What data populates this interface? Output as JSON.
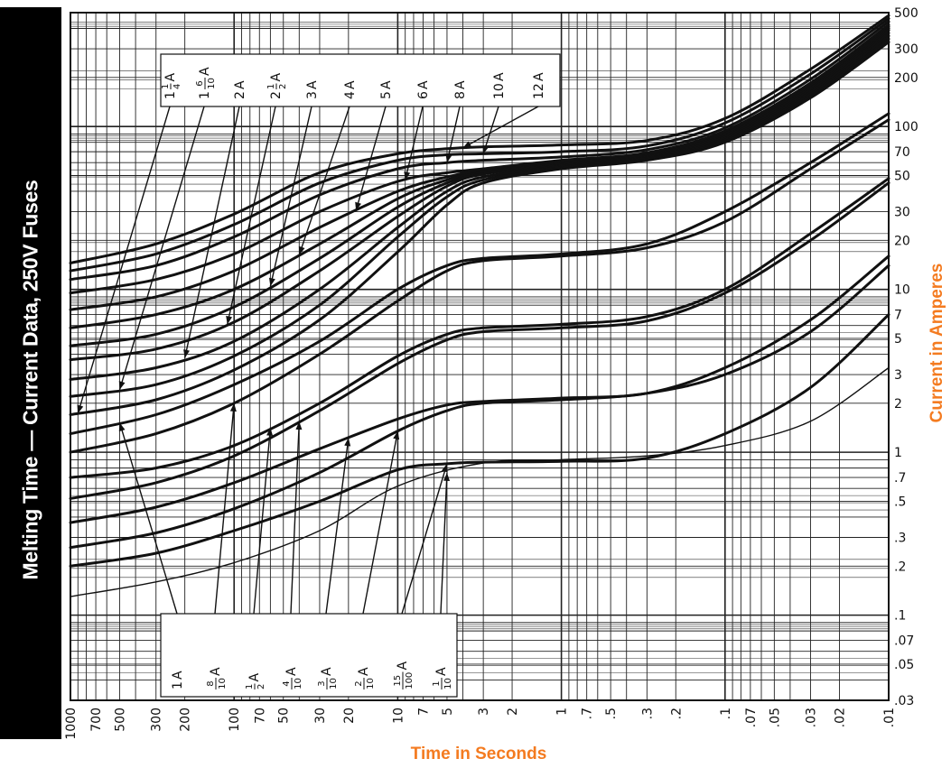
{
  "page": {
    "side_title": "Melting Time — Current Data, 250V Fuses",
    "accent_color": "#f47b20",
    "banner_color": "#000000"
  },
  "chart_data": {
    "type": "line",
    "title": "",
    "xlabel": "Time in Seconds",
    "ylabel": "Current in Amperes",
    "x_scale": "log",
    "y_scale": "log",
    "x_reversed": true,
    "xlim": [
      1000,
      0.01
    ],
    "ylim": [
      0.03,
      500
    ],
    "grid": true,
    "x_tick_labels": [
      "1000",
      "700",
      "500",
      "300",
      "200",
      "100",
      "70",
      "50",
      "30",
      "20",
      "10",
      "7",
      "5",
      "3",
      "2",
      "1",
      ".7",
      ".5",
      ".3",
      ".2",
      ".1",
      ".07",
      ".05",
      ".03",
      ".02",
      ".01"
    ],
    "x_tick_values": [
      1000,
      700,
      500,
      300,
      200,
      100,
      70,
      50,
      30,
      20,
      10,
      7,
      5,
      3,
      2,
      1,
      0.7,
      0.5,
      0.3,
      0.2,
      0.1,
      0.07,
      0.05,
      0.03,
      0.02,
      0.01
    ],
    "y_tick_labels": [
      "500",
      "300",
      "200",
      "100",
      "70",
      "50",
      "30",
      "20",
      "10",
      "7",
      "5",
      "3",
      "2",
      "1",
      ".7",
      ".5",
      ".3",
      ".2",
      ".1",
      ".07",
      ".05",
      ".03"
    ],
    "y_tick_values": [
      500,
      300,
      200,
      100,
      70,
      50,
      30,
      20,
      10,
      7,
      5,
      3,
      2,
      1,
      0.7,
      0.5,
      0.3,
      0.2,
      0.1,
      0.07,
      0.05,
      0.03
    ],
    "series": [
      {
        "name": "1/10 A",
        "thin": true,
        "x": [
          1000,
          300,
          100,
          30,
          10,
          3,
          1,
          0.3,
          0.1,
          0.03,
          0.01
        ],
        "y": [
          0.13,
          0.16,
          0.21,
          0.33,
          0.62,
          0.86,
          0.9,
          0.95,
          1.1,
          1.55,
          3.3
        ]
      },
      {
        "name": "15/100 A",
        "x": [
          1000,
          300,
          100,
          30,
          10,
          5,
          3,
          1,
          0.3,
          0.1,
          0.03,
          0.01
        ],
        "y": [
          0.2,
          0.24,
          0.33,
          0.5,
          0.78,
          0.85,
          0.87,
          0.88,
          0.92,
          1.3,
          2.5,
          7.0
        ]
      },
      {
        "name": "2/10 A",
        "x": [
          1000,
          300,
          100,
          30,
          10,
          5,
          3,
          1,
          0.3,
          0.1,
          0.03,
          0.01
        ],
        "y": [
          0.26,
          0.32,
          0.45,
          0.75,
          1.35,
          1.8,
          2.0,
          2.1,
          2.3,
          3.0,
          5.5,
          14.0
        ]
      },
      {
        "name": "3/10 A",
        "x": [
          1000,
          300,
          100,
          30,
          10,
          5,
          3,
          1,
          0.3,
          0.1,
          0.03,
          0.01
        ],
        "y": [
          0.37,
          0.46,
          0.65,
          1.05,
          1.6,
          1.95,
          2.05,
          2.15,
          2.3,
          3.3,
          6.5,
          16.0
        ]
      },
      {
        "name": "4/10 A",
        "x": [
          1000,
          300,
          100,
          30,
          10,
          5,
          3,
          1,
          0.3,
          0.1,
          0.03,
          0.01
        ],
        "y": [
          0.52,
          0.65,
          0.95,
          1.8,
          3.5,
          4.9,
          5.5,
          5.8,
          6.4,
          9.5,
          20.0,
          45.0
        ]
      },
      {
        "name": "1/2 A",
        "x": [
          1000,
          300,
          100,
          30,
          10,
          5,
          3,
          1,
          0.3,
          0.1,
          0.03,
          0.01
        ],
        "y": [
          0.7,
          0.8,
          1.1,
          2.0,
          3.9,
          5.3,
          5.8,
          6.1,
          6.8,
          10.0,
          22.0,
          48.0
        ]
      },
      {
        "name": "8/10 A",
        "x": [
          1000,
          300,
          100,
          30,
          10,
          5,
          3,
          1,
          0.3,
          0.1,
          0.03,
          0.01
        ],
        "y": [
          1.0,
          1.3,
          2.0,
          4.0,
          8.5,
          13.0,
          15.0,
          16.0,
          18.0,
          26.0,
          55.0,
          110.0
        ]
      },
      {
        "name": "1 A",
        "x": [
          1000,
          300,
          100,
          30,
          10,
          5,
          3,
          1,
          0.3,
          0.1,
          0.03,
          0.01
        ],
        "y": [
          1.3,
          1.7,
          2.6,
          4.8,
          10.0,
          14.0,
          15.5,
          16.5,
          19.0,
          30.0,
          60.0,
          120.0
        ]
      },
      {
        "name": "1 1/4 A",
        "x": [
          1000,
          300,
          100,
          30,
          10,
          5,
          3,
          1,
          0.3,
          0.1,
          0.03,
          0.01
        ],
        "y": [
          1.7,
          2.1,
          3.2,
          6.5,
          17.0,
          33.0,
          45.0,
          55.0,
          62.0,
          80.0,
          150.0,
          330.0
        ]
      },
      {
        "name": "1 6/10 A",
        "x": [
          1000,
          300,
          100,
          30,
          10,
          5,
          3,
          1,
          0.3,
          0.1,
          0.03,
          0.01
        ],
        "y": [
          2.2,
          2.6,
          3.9,
          8.0,
          21.0,
          37.0,
          47.0,
          56.0,
          63.0,
          82.0,
          155.0,
          345.0
        ]
      },
      {
        "name": "2 A",
        "x": [
          1000,
          300,
          100,
          30,
          10,
          5,
          3,
          1,
          0.3,
          0.1,
          0.03,
          0.01
        ],
        "y": [
          2.8,
          3.3,
          4.8,
          10.0,
          24.0,
          40.0,
          49.0,
          57.0,
          64.0,
          84.0,
          160.0,
          360.0
        ]
      },
      {
        "name": "2 1/2 A",
        "x": [
          1000,
          300,
          100,
          30,
          10,
          5,
          3,
          1,
          0.3,
          0.1,
          0.03,
          0.01
        ],
        "y": [
          3.7,
          4.3,
          6.3,
          13.0,
          28.0,
          43.0,
          51.0,
          58.0,
          65.0,
          86.0,
          165.0,
          375.0
        ]
      },
      {
        "name": "3 A",
        "x": [
          1000,
          300,
          100,
          30,
          10,
          5,
          3,
          1,
          0.3,
          0.1,
          0.03,
          0.01
        ],
        "y": [
          4.5,
          5.3,
          7.8,
          15.5,
          32.0,
          45.0,
          52.0,
          59.0,
          66.0,
          88.0,
          170.0,
          390.0
        ]
      },
      {
        "name": "4 A",
        "x": [
          1000,
          300,
          100,
          30,
          10,
          5,
          3,
          1,
          0.3,
          0.1,
          0.03,
          0.01
        ],
        "y": [
          5.8,
          7.0,
          10.0,
          19.0,
          36.0,
          47.0,
          53.0,
          60.0,
          67.0,
          90.0,
          175.0,
          400.0
        ]
      },
      {
        "name": "5 A",
        "x": [
          1000,
          300,
          100,
          30,
          10,
          5,
          3,
          1,
          0.3,
          0.1,
          0.03,
          0.01
        ],
        "y": [
          7.5,
          9.0,
          13.0,
          24.0,
          40.0,
          49.0,
          54.0,
          61.0,
          68.0,
          92.0,
          180.0,
          410.0
        ]
      },
      {
        "name": "6 A",
        "x": [
          1000,
          300,
          100,
          30,
          10,
          5,
          3,
          1,
          0.3,
          0.1,
          0.03,
          0.01
        ],
        "y": [
          9.5,
          11.5,
          16.5,
          30.0,
          46.0,
          52.0,
          55.0,
          62.0,
          69.0,
          94.0,
          185.0,
          420.0
        ]
      },
      {
        "name": "8 A",
        "x": [
          1000,
          300,
          100,
          30,
          10,
          5,
          3,
          1,
          0.3,
          0.1,
          0.03,
          0.01
        ],
        "y": [
          11.5,
          14.0,
          21.0,
          38.0,
          55.0,
          60.0,
          62.0,
          65.0,
          72.0,
          98.0,
          195.0,
          440.0
        ]
      },
      {
        "name": "10 A",
        "x": [
          1000,
          300,
          100,
          30,
          10,
          5,
          3,
          1,
          0.3,
          0.1,
          0.03,
          0.01
        ],
        "y": [
          13.0,
          16.5,
          25.0,
          45.0,
          62.0,
          67.0,
          68.0,
          70.0,
          76.0,
          105.0,
          210.0,
          460.0
        ]
      },
      {
        "name": "12 A",
        "x": [
          1000,
          300,
          100,
          30,
          10,
          5,
          3,
          1,
          0.3,
          0.1,
          0.03,
          0.01
        ],
        "y": [
          14.5,
          19.0,
          29.0,
          52.0,
          68.0,
          73.0,
          75.0,
          77.0,
          82.0,
          112.0,
          225.0,
          480.0
        ]
      }
    ],
    "top_labels": [
      {
        "label": "12A",
        "whole": "12",
        "num": "",
        "den": "",
        "unit": "A"
      },
      {
        "label": "10A",
        "whole": "10",
        "num": "",
        "den": "",
        "unit": "A"
      },
      {
        "label": "8A",
        "whole": "8",
        "num": "",
        "den": "",
        "unit": "A"
      },
      {
        "label": "6A",
        "whole": "6",
        "num": "",
        "den": "",
        "unit": "A"
      },
      {
        "label": "5A",
        "whole": "5",
        "num": "",
        "den": "",
        "unit": "A"
      },
      {
        "label": "4A",
        "whole": "4",
        "num": "",
        "den": "",
        "unit": "A"
      },
      {
        "label": "3A",
        "whole": "3",
        "num": "",
        "den": "",
        "unit": "A"
      },
      {
        "label": "2 1/2 A",
        "whole": "2",
        "num": "1",
        "den": "2",
        "unit": "A"
      },
      {
        "label": "2A",
        "whole": "2",
        "num": "",
        "den": "",
        "unit": "A"
      },
      {
        "label": "1 6/10 A",
        "whole": "1",
        "num": "6",
        "den": "10",
        "unit": "A"
      },
      {
        "label": "1 1/4 A",
        "whole": "1",
        "num": "1",
        "den": "4",
        "unit": "A"
      }
    ],
    "bottom_labels": [
      {
        "label": "1 A",
        "whole": "1",
        "num": "",
        "den": "",
        "unit": "A"
      },
      {
        "label": "8/10 A",
        "whole": "",
        "num": "8",
        "den": "10",
        "unit": "A"
      },
      {
        "label": "1/2 A",
        "whole": "",
        "num": "1",
        "den": "2",
        "unit": "A"
      },
      {
        "label": "4/10 A",
        "whole": "",
        "num": "4",
        "den": "10",
        "unit": "A"
      },
      {
        "label": "3/10 A",
        "whole": "",
        "num": "3",
        "den": "10",
        "unit": "A"
      },
      {
        "label": "2/10 A",
        "whole": "",
        "num": "2",
        "den": "10",
        "unit": "A"
      },
      {
        "label": "15/100 A",
        "whole": "",
        "num": "15",
        "den": "100",
        "unit": "A"
      },
      {
        "label": "1/10 A",
        "whole": "",
        "num": "1",
        "den": "10",
        "unit": "A"
      }
    ]
  }
}
